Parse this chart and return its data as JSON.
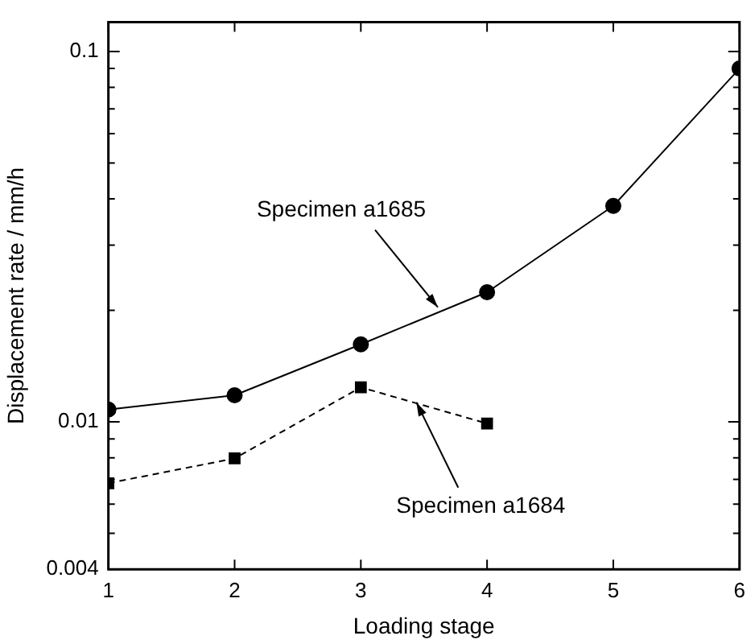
{
  "chart_data": {
    "type": "line",
    "xlabel": "Loading stage",
    "ylabel": "Displacement rate / mm/h",
    "log": "y",
    "grid": false,
    "legend": false,
    "x": [
      1,
      2,
      3,
      4,
      5,
      6
    ],
    "xlim": [
      1,
      6
    ],
    "xticks": [
      1,
      2,
      3,
      4,
      5,
      6
    ],
    "ylim": [
      0.004,
      0.12
    ],
    "yticks": [
      0.004,
      {
        "value": 0.005,
        "label": null
      },
      {
        "value": 0.006,
        "label": null
      },
      {
        "value": 0.007,
        "label": null
      },
      {
        "value": 0.008,
        "label": null
      },
      {
        "value": 0.009,
        "label": null
      },
      0.01,
      {
        "value": 0.02,
        "label": null
      },
      {
        "value": 0.03,
        "label": null
      },
      {
        "value": 0.04,
        "label": null
      },
      {
        "value": 0.05,
        "label": null
      },
      {
        "value": 0.06,
        "label": null
      },
      {
        "value": 0.07,
        "label": null
      },
      {
        "value": 0.08,
        "label": null
      },
      {
        "value": 0.09,
        "label": null
      },
      0.1
    ],
    "series": [
      {
        "color": "#000000",
        "marker": "circle",
        "line_style": "solid",
        "values": [
          0.0108,
          0.0118,
          0.0162,
          0.0224,
          0.0383,
          0.09
        ]
      },
      {
        "color": "#000000",
        "marker": "square",
        "line_style": "dashed",
        "values": [
          0.00683,
          0.00797,
          0.0124,
          0.0099,
          null,
          null
        ]
      }
    ],
    "annotations": [
      {
        "text": "Specimen a1685",
        "x": 3.61,
        "y": 0.0204
      },
      {
        "text": "Specimen a1684",
        "x": 3.44,
        "y": 0.0113
      }
    ]
  }
}
